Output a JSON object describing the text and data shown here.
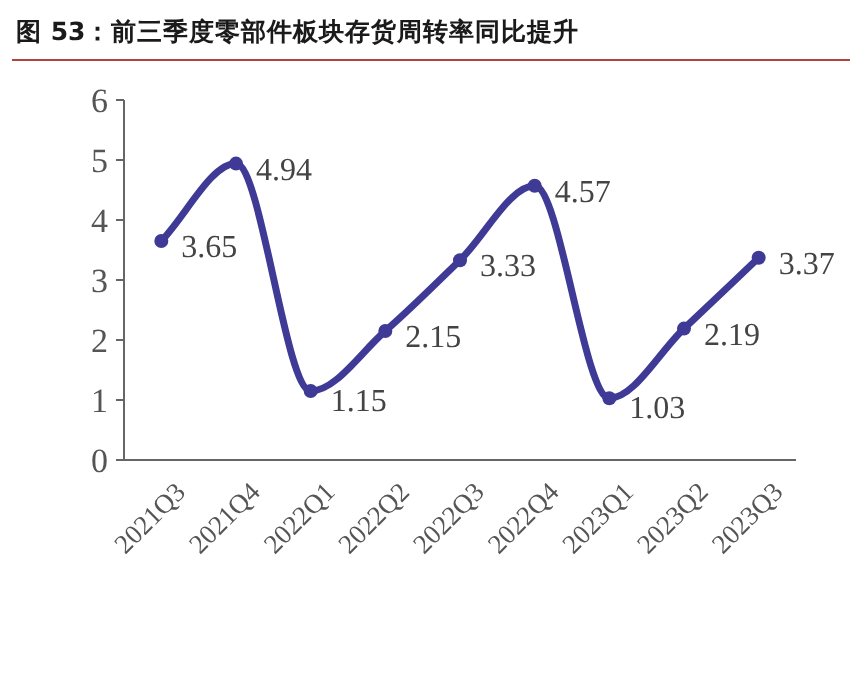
{
  "chart_data": {
    "type": "line",
    "title": "图 53：前三季度零部件板块存货周转率同比提升",
    "categories": [
      "2021Q3",
      "2021Q4",
      "2022Q1",
      "2022Q2",
      "2022Q3",
      "2022Q4",
      "2023Q1",
      "2023Q2",
      "2023Q3"
    ],
    "values": [
      3.65,
      4.94,
      1.15,
      2.15,
      3.33,
      4.57,
      1.03,
      2.19,
      3.37
    ],
    "color": "#3f3a96",
    "ylim": [
      0,
      6
    ],
    "yticks": [
      0,
      1,
      2,
      3,
      4,
      5,
      6
    ],
    "data_labels": true,
    "marker": "circle",
    "line_style": "solid"
  }
}
